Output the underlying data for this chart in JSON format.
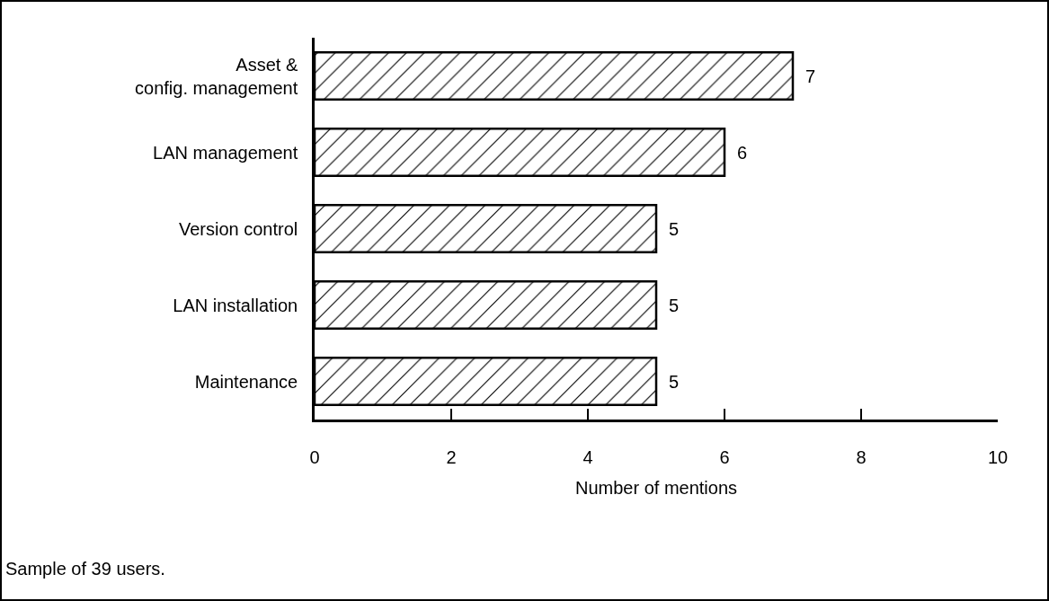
{
  "chart_data": {
    "type": "bar",
    "orientation": "horizontal",
    "categories": [
      "Asset & config. management",
      "LAN management",
      "Version control",
      "LAN installation",
      "Maintenance"
    ],
    "values": [
      7,
      6,
      5,
      5,
      5
    ],
    "color": "#000000",
    "xlabel": "Number of mentions",
    "xlim": [
      0,
      10
    ],
    "xticks": [
      0,
      2,
      4,
      6,
      8,
      10
    ],
    "data_labels": true,
    "grid": false,
    "annotations": [
      "Sample of 39 users."
    ]
  }
}
